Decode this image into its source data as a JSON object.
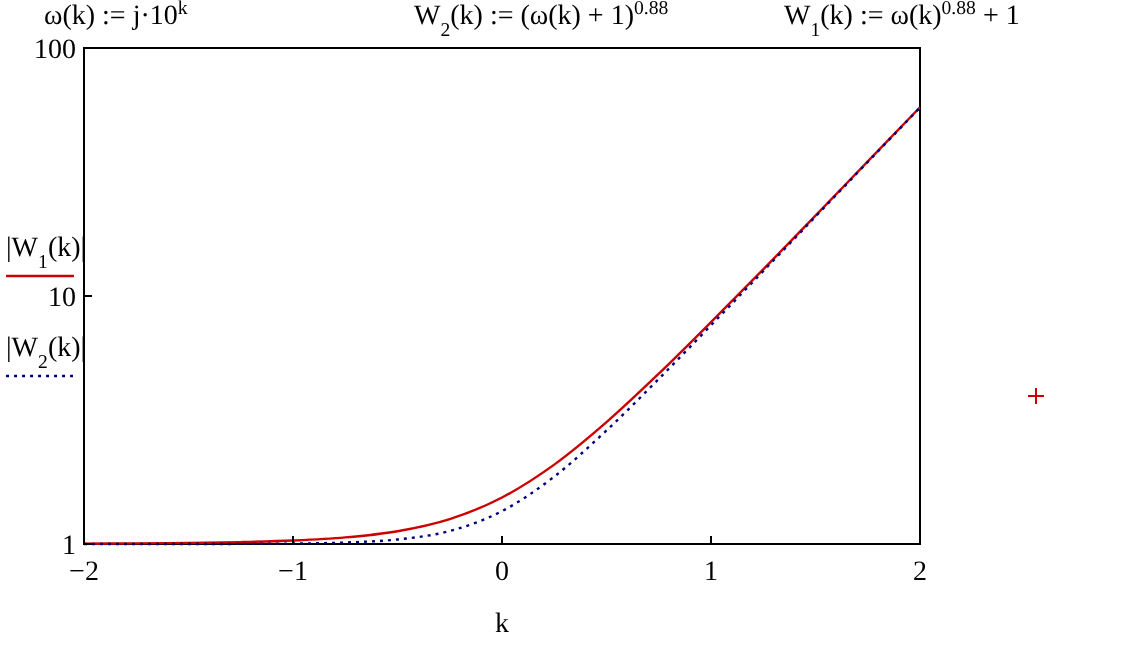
{
  "chart_data": {
    "type": "line",
    "annotations": [
      "ω(k) := j·10$^{k}$",
      "W$_{2}$(k) := (ω(k) + 1)$^{0.88}$",
      "W$_{1}$(k) := ω(k)$^{0.88}$ + 1"
    ],
    "xlabel": "k",
    "log": "y",
    "xlim": [
      -2,
      2
    ],
    "xticks": [
      {
        "value": -2,
        "label": "−2"
      },
      {
        "value": -1,
        "label": "−1"
      },
      0,
      1,
      2
    ],
    "ylim": [
      1,
      100
    ],
    "yticks": [
      1,
      10,
      100
    ],
    "grid": false,
    "legend": "left",
    "marker": "none",
    "x": [
      -2,
      -1.75,
      -1.5,
      -1.25,
      -1,
      -0.75,
      -0.5,
      -0.25,
      0,
      0.25,
      0.5,
      0.75,
      1,
      1.25,
      1.5,
      1.75,
      2
    ],
    "series": [
      {
        "name": "|W$_{1}$(k)|",
        "color": "#cc0000",
        "line_style": "solid",
        "values": [
          1.003,
          1.006,
          1.01,
          1.018,
          1.033,
          1.063,
          1.126,
          1.26,
          1.54,
          2.09,
          3.1,
          4.86,
          7.84,
          12.8,
          21.1,
          34.9,
          57.7
        ]
      },
      {
        "name": "|W$_{2}$(k)|",
        "color": "#000080",
        "line_style": "dotted",
        "values": [
          1.0,
          1.0,
          1.0,
          1.001,
          1.004,
          1.014,
          1.043,
          1.128,
          1.357,
          1.87,
          2.87,
          4.63,
          7.62,
          12.6,
          20.9,
          34.7,
          57.5
        ]
      }
    ]
  }
}
